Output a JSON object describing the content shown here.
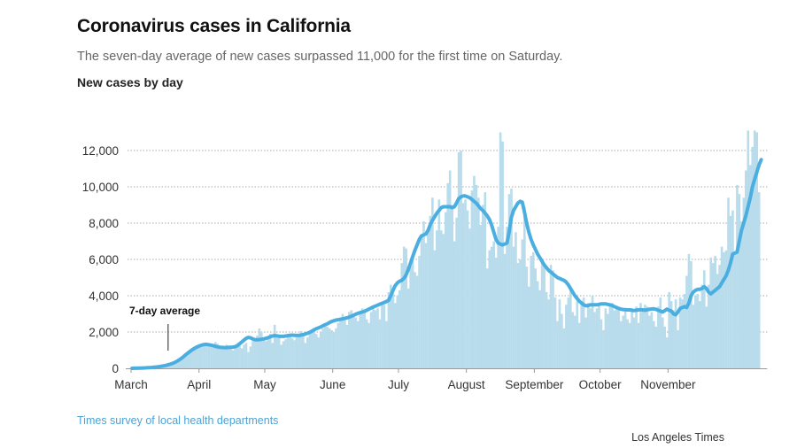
{
  "header": {
    "title": "Coronavirus cases in California",
    "subtitle": "The seven-day average of new cases surpassed 11,000 for the first time on Saturday.",
    "chart_label": "New cases by day"
  },
  "footer": {
    "source": "Times survey of local health departments",
    "credit": "Los Angeles Times"
  },
  "colors": {
    "bars": "#b8dcec",
    "line": "#4aaee0",
    "grid": "#aaaaaa",
    "axis": "#999999",
    "source_link": "#4ba3d6"
  },
  "chart_data": {
    "type": "bar",
    "title": "Coronavirus cases in California",
    "subtitle": "New cases by day",
    "xlabel": "",
    "ylabel": "",
    "ylim": [
      0,
      13500
    ],
    "grid": true,
    "y_ticks": [
      0,
      2000,
      4000,
      6000,
      8000,
      10000,
      12000
    ],
    "y_tick_labels": [
      "0",
      "2,000",
      "4,000",
      "6,000",
      "8,000",
      "10,000",
      "12,000"
    ],
    "x_ticks": [
      {
        "label": "March",
        "day": 0
      },
      {
        "label": "April",
        "day": 31
      },
      {
        "label": "May",
        "day": 61
      },
      {
        "label": "June",
        "day": 92
      },
      {
        "label": "July",
        "day": 122
      },
      {
        "label": "August",
        "day": 153
      },
      {
        "label": "September",
        "day": 184
      },
      {
        "label": "October",
        "day": 214
      },
      {
        "label": "November",
        "day": 245
      }
    ],
    "annotation": {
      "label": "7-day average",
      "day": 16,
      "value": 1000
    },
    "series": [
      {
        "name": "New cases",
        "type": "bar",
        "start": "March 1",
        "values": [
          0,
          5,
          10,
          15,
          20,
          25,
          30,
          40,
          50,
          60,
          80,
          100,
          120,
          140,
          160,
          190,
          220,
          260,
          300,
          350,
          400,
          460,
          520,
          600,
          700,
          800,
          900,
          1000,
          1050,
          1100,
          1150,
          1200,
          1300,
          1250,
          1400,
          1350,
          1200,
          1300,
          1450,
          1350,
          1250,
          1200,
          1050,
          1300,
          1250,
          1150,
          1000,
          1200,
          1350,
          1250,
          1100,
          1300,
          1400,
          900,
          1200,
          1500,
          1600,
          1800,
          2200,
          2000,
          1600,
          1500,
          1700,
          1900,
          1400,
          2400,
          1700,
          1800,
          1300,
          1500,
          1600,
          1700,
          1800,
          1650,
          1550,
          1700,
          1900,
          2050,
          1800,
          1400,
          1700,
          1900,
          2100,
          2100,
          1900,
          1700,
          2000,
          2200,
          2400,
          2300,
          2200,
          2100,
          2000,
          2200,
          2500,
          2700,
          3000,
          2800,
          2400,
          3100,
          3200,
          2900,
          2800,
          2600,
          3000,
          3300,
          3100,
          2700,
          2500,
          3100,
          3400,
          3200,
          3300,
          2700,
          3600,
          3500,
          2600,
          4200,
          4600,
          4100,
          3600,
          4000,
          4300,
          5800,
          6700,
          6600,
          4400,
          5600,
          6100,
          5300,
          5100,
          6200,
          7300,
          8100,
          6900,
          7700,
          8400,
          9400,
          6500,
          7600,
          9300,
          7600,
          7400,
          8600,
          10200,
          10900,
          9000,
          7000,
          8300,
          11900,
          12000,
          9100,
          9300,
          8700,
          7700,
          9800,
          10600,
          10100,
          9400,
          7900,
          9000,
          9700,
          5500,
          6500,
          6700,
          7000,
          6100,
          7800,
          13000,
          12500,
          6300,
          7800,
          9600,
          9900,
          6700,
          7500,
          5800,
          6000,
          7100,
          8900,
          5600,
          4500,
          6200,
          6400,
          5500,
          4800,
          4300,
          5900,
          5600,
          4200,
          3800,
          5700,
          5400,
          3900,
          2600,
          3800,
          3000,
          2200,
          3500,
          3900,
          4300,
          3100,
          2900,
          3700,
          2500,
          3700,
          3900,
          2800,
          3600,
          3300,
          4000,
          3100,
          3300,
          3600,
          2700,
          2100,
          3300,
          3000,
          3500,
          3600,
          3200,
          3400,
          3300,
          2600,
          2900,
          3300,
          2700,
          2500,
          3300,
          2800,
          3400,
          2500,
          3600,
          3300,
          3500,
          3400,
          2900,
          3100,
          2600,
          2300,
          3400,
          3900,
          2800,
          2300,
          1700,
          4200,
          3700,
          3200,
          3800,
          2100,
          3900,
          3800,
          4100,
          5100,
          6300,
          5900,
          3500,
          4000,
          4100,
          3700,
          4600,
          5400,
          3400,
          4600,
          6100,
          5800,
          6200,
          5200,
          5700,
          6700,
          6400,
          6500,
          9400,
          8400,
          8700,
          6400,
          10100,
          9600,
          8100,
          9400,
          10900,
          13100,
          11200,
          12200,
          13100,
          13000,
          9700
        ]
      },
      {
        "name": "7-day average",
        "type": "line",
        "start": "March 1",
        "values": [
          0,
          3,
          6,
          10,
          15,
          20,
          25,
          32,
          40,
          50,
          62,
          75,
          90,
          105,
          125,
          150,
          180,
          215,
          255,
          300,
          360,
          430,
          510,
          600,
          700,
          800,
          900,
          990,
          1070,
          1140,
          1200,
          1250,
          1290,
          1310,
          1320,
          1300,
          1280,
          1250,
          1210,
          1180,
          1160,
          1150,
          1140,
          1140,
          1150,
          1160,
          1170,
          1190,
          1250,
          1350,
          1450,
          1550,
          1650,
          1700,
          1680,
          1620,
          1580,
          1570,
          1580,
          1600,
          1620,
          1650,
          1690,
          1740,
          1780,
          1800,
          1790,
          1770,
          1760,
          1760,
          1780,
          1800,
          1820,
          1830,
          1820,
          1810,
          1810,
          1830,
          1860,
          1890,
          1930,
          1980,
          2050,
          2120,
          2180,
          2230,
          2280,
          2340,
          2400,
          2450,
          2520,
          2580,
          2620,
          2660,
          2680,
          2700,
          2720,
          2750,
          2780,
          2820,
          2870,
          2920,
          2980,
          3030,
          3070,
          3100,
          3140,
          3200,
          3260,
          3320,
          3380,
          3430,
          3480,
          3530,
          3580,
          3630,
          3680,
          3750,
          4000,
          4300,
          4550,
          4700,
          4800,
          4850,
          4950,
          5150,
          5450,
          5800,
          6150,
          6500,
          6800,
          7100,
          7300,
          7350,
          7400,
          7600,
          7900,
          8150,
          8350,
          8550,
          8700,
          8850,
          8900,
          8900,
          8900,
          8900,
          8850,
          8900,
          9100,
          9350,
          9450,
          9500,
          9500,
          9450,
          9400,
          9300,
          9200,
          9100,
          8950,
          8800,
          8700,
          8550,
          8400,
          8200,
          7900,
          7500,
          7100,
          6900,
          6850,
          6800,
          6850,
          6900,
          7500,
          8300,
          8700,
          8900,
          9100,
          9200,
          9150,
          8600,
          8000,
          7500,
          7100,
          6800,
          6550,
          6300,
          6100,
          5900,
          5700,
          5550,
          5400,
          5300,
          5200,
          5100,
          5000,
          4950,
          4900,
          4850,
          4750,
          4600,
          4400,
          4200,
          4000,
          3850,
          3700,
          3600,
          3500,
          3450,
          3450,
          3500,
          3500,
          3500,
          3500,
          3520,
          3550,
          3550,
          3550,
          3520,
          3500,
          3460,
          3400,
          3350,
          3300,
          3260,
          3240,
          3230,
          3220,
          3220,
          3200,
          3180,
          3200,
          3220,
          3230,
          3220,
          3200,
          3230,
          3250,
          3270,
          3280,
          3250,
          3200,
          3150,
          3100,
          3180,
          3260,
          3200,
          3150,
          3000,
          2950,
          3100,
          3300,
          3350,
          3400,
          3350,
          3600,
          4000,
          4200,
          4300,
          4350,
          4350,
          4400,
          4500,
          4400,
          4200,
          4100,
          4200,
          4300,
          4400,
          4500,
          4700,
          4900,
          5100,
          5400,
          5800,
          6300,
          6350,
          6400,
          7000,
          7600,
          8000,
          8400,
          8900,
          9400,
          10000,
          10400,
          10800,
          11200,
          11500
        ]
      }
    ]
  }
}
